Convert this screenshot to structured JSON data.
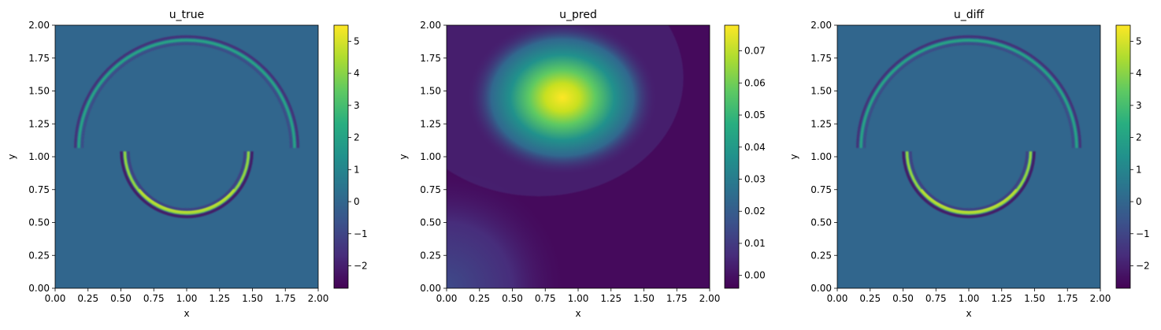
{
  "chart_data": [
    {
      "type": "heatmap",
      "title": "u_true",
      "xlabel": "x",
      "ylabel": "y",
      "xlim": [
        0,
        2
      ],
      "ylim": [
        0,
        2
      ],
      "xticks": [
        "0.00",
        "0.25",
        "0.50",
        "0.75",
        "1.00",
        "1.25",
        "1.50",
        "1.75",
        "2.00"
      ],
      "yticks": [
        "0.00",
        "0.25",
        "0.50",
        "0.75",
        "1.00",
        "1.25",
        "1.50",
        "1.75",
        "2.00"
      ],
      "colormap": "viridis",
      "colorbar": {
        "vmin": -2.7,
        "vmax": 5.5,
        "ticks": [
          "−2",
          "−1",
          "0",
          "1",
          "2",
          "3",
          "4",
          "5"
        ]
      },
      "features": {
        "background_value": 0,
        "outer_arc": {
          "center": [
            1.0,
            1.05
          ],
          "radius": 0.82,
          "span": "upper half",
          "peak_value": 2.0
        },
        "inner_arc": {
          "center": [
            1.0,
            1.05
          ],
          "radius": 0.47,
          "span": "lower half",
          "peak_value": 5.5
        }
      }
    },
    {
      "type": "heatmap",
      "title": "u_pred",
      "xlabel": "x",
      "ylabel": "y",
      "xlim": [
        0,
        2
      ],
      "ylim": [
        0,
        2
      ],
      "xticks": [
        "0.00",
        "0.25",
        "0.50",
        "0.75",
        "1.00",
        "1.25",
        "1.50",
        "1.75",
        "2.00"
      ],
      "yticks": [
        "0.00",
        "0.25",
        "0.50",
        "0.75",
        "1.00",
        "1.25",
        "1.50",
        "1.75",
        "2.00"
      ],
      "colormap": "viridis",
      "colorbar": {
        "vmin": -0.004,
        "vmax": 0.078,
        "ticks": [
          "0.00",
          "0.01",
          "0.02",
          "0.03",
          "0.04",
          "0.05",
          "0.06",
          "0.07"
        ]
      },
      "features": {
        "background_value": -0.002,
        "peak": {
          "center": [
            0.88,
            1.45
          ],
          "value": 0.078
        },
        "corner_rise": {
          "at": [
            0.0,
            0.0
          ],
          "value": 0.012
        }
      }
    },
    {
      "type": "heatmap",
      "title": "u_diff",
      "xlabel": "x",
      "ylabel": "y",
      "xlim": [
        0,
        2
      ],
      "ylim": [
        0,
        2
      ],
      "xticks": [
        "0.00",
        "0.25",
        "0.50",
        "0.75",
        "1.00",
        "1.25",
        "1.50",
        "1.75",
        "2.00"
      ],
      "yticks": [
        "0.00",
        "0.25",
        "0.50",
        "0.75",
        "1.00",
        "1.25",
        "1.50",
        "1.75",
        "2.00"
      ],
      "colormap": "viridis",
      "colorbar": {
        "vmin": -2.7,
        "vmax": 5.5,
        "ticks": [
          "−2",
          "−1",
          "0",
          "1",
          "2",
          "3",
          "4",
          "5"
        ]
      },
      "features": {
        "background_value": 0,
        "outer_arc": {
          "center": [
            1.0,
            1.05
          ],
          "radius": 0.82,
          "span": "upper half",
          "peak_value": 2.0
        },
        "inner_arc": {
          "center": [
            1.0,
            1.05
          ],
          "radius": 0.47,
          "span": "lower half",
          "peak_value": 5.5
        }
      }
    }
  ]
}
